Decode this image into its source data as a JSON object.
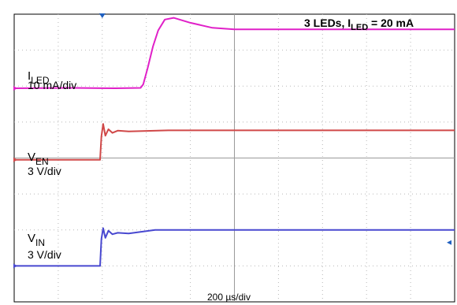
{
  "chart_data": {
    "type": "line",
    "title_main": "3 LEDs, I",
    "title_sub": "LED",
    "title_tail": " = 20 mA",
    "time_scale_label": "200 µs/div",
    "x_divisions": 10,
    "y_divisions": 8,
    "x_unit": "div",
    "y_unit": "div",
    "xlim": [
      0,
      10
    ],
    "ylim": [
      0,
      8
    ],
    "trigger_marker_x": 2.0,
    "series": [
      {
        "name_main": "I",
        "name_sub": "LED",
        "scale_label": "10 mA/div",
        "color": "#e020c8",
        "points": [
          [
            0,
            5.94
          ],
          [
            1.3,
            5.95
          ],
          [
            2.3,
            5.94
          ],
          [
            2.87,
            5.95
          ],
          [
            2.93,
            6.05
          ],
          [
            3.03,
            6.5
          ],
          [
            3.15,
            7.1
          ],
          [
            3.27,
            7.55
          ],
          [
            3.42,
            7.85
          ],
          [
            3.62,
            7.9
          ],
          [
            4.0,
            7.76
          ],
          [
            4.5,
            7.62
          ],
          [
            5.0,
            7.58
          ],
          [
            6.0,
            7.58
          ],
          [
            10,
            7.58
          ]
        ]
      },
      {
        "name_main": "V",
        "name_sub": "EN",
        "scale_label": "3 V/div",
        "color": "#d04848",
        "points": [
          [
            0,
            3.95
          ],
          [
            1.95,
            3.95
          ],
          [
            1.98,
            4.6
          ],
          [
            2.02,
            4.95
          ],
          [
            2.07,
            4.62
          ],
          [
            2.14,
            4.8
          ],
          [
            2.23,
            4.7
          ],
          [
            2.35,
            4.76
          ],
          [
            2.6,
            4.74
          ],
          [
            3.5,
            4.77
          ],
          [
            10,
            4.77
          ]
        ]
      },
      {
        "name_main": "V",
        "name_sub": "IN",
        "scale_label": "3 V/div",
        "color": "#4848d0",
        "points": [
          [
            0,
            1.0
          ],
          [
            1.95,
            1.0
          ],
          [
            1.98,
            1.75
          ],
          [
            2.02,
            2.05
          ],
          [
            2.07,
            1.78
          ],
          [
            2.14,
            1.98
          ],
          [
            2.23,
            1.88
          ],
          [
            2.35,
            1.92
          ],
          [
            2.6,
            1.9
          ],
          [
            3.2,
            2.0
          ],
          [
            10,
            2.0
          ]
        ]
      }
    ]
  }
}
